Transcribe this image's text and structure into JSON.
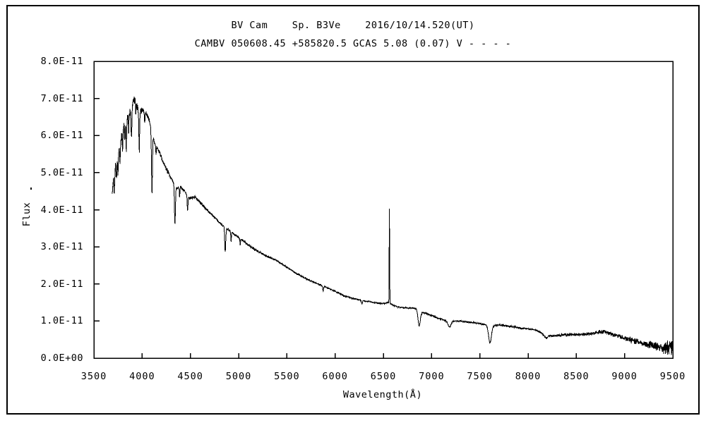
{
  "page": {
    "background": "#ffffff",
    "border_color": "#000000"
  },
  "chart_data": {
    "type": "line",
    "title": "BV Cam    Sp. B3Ve    2016/10/14.520(UT)",
    "subtitle": "CAMBV 050608.45 +585820.5 GCAS 5.08 (0.07) V - - - -",
    "xlabel": "Wavelength(Å)",
    "ylabel": "Flux",
    "line_color": "#000000",
    "grid": false,
    "legend": "none",
    "xlim": [
      3500,
      9500
    ],
    "y_max_flux_1e11": 8,
    "x_ticks": {
      "values": [
        3500,
        4000,
        4500,
        5000,
        5500,
        6000,
        6500,
        7000,
        7500,
        8000,
        8500,
        9000,
        9500
      ],
      "labels": [
        "3500",
        "4000",
        "4500",
        "5000",
        "5500",
        "6000",
        "6500",
        "7000",
        "7500",
        "8000",
        "8500",
        "9000",
        "9500"
      ]
    },
    "y_ticks": {
      "values": [
        0,
        1,
        2,
        3,
        4,
        5,
        6,
        7,
        8
      ],
      "labels": [
        "0.0E+00",
        "1.0E-11",
        "2.0E-11",
        "3.0E-11",
        "4.0E-11",
        "5.0E-11",
        "6.0E-11",
        "7.0E-11",
        "8.0E-11"
      ]
    },
    "wavelength_range": [
      3688,
      9505
    ],
    "sample_step_angstrom": 1.85,
    "flux_units": "1e-11",
    "continuum_points": [
      [
        3688,
        4.45
      ],
      [
        3700,
        4.8
      ],
      [
        3720,
        5.1
      ],
      [
        3740,
        5.35
      ],
      [
        3760,
        5.6
      ],
      [
        3780,
        5.9
      ],
      [
        3800,
        6.2
      ],
      [
        3830,
        6.4
      ],
      [
        3860,
        6.55
      ],
      [
        3890,
        6.7
      ],
      [
        3910,
        6.95
      ],
      [
        3925,
        7.0
      ],
      [
        3945,
        6.8
      ],
      [
        3970,
        6.65
      ],
      [
        4000,
        6.7
      ],
      [
        4040,
        6.6
      ],
      [
        4070,
        6.45
      ],
      [
        4100,
        6.1
      ],
      [
        4130,
        5.8
      ],
      [
        4170,
        5.6
      ],
      [
        4210,
        5.35
      ],
      [
        4250,
        5.1
      ],
      [
        4300,
        4.85
      ],
      [
        4350,
        4.6
      ],
      [
        4400,
        4.6
      ],
      [
        4440,
        4.5
      ],
      [
        4490,
        4.3
      ],
      [
        4550,
        4.35
      ],
      [
        4600,
        4.2
      ],
      [
        4650,
        4.05
      ],
      [
        4700,
        3.93
      ],
      [
        4750,
        3.8
      ],
      [
        4800,
        3.65
      ],
      [
        4860,
        3.52
      ],
      [
        4900,
        3.45
      ],
      [
        4950,
        3.35
      ],
      [
        5000,
        3.25
      ],
      [
        5100,
        3.05
      ],
      [
        5200,
        2.88
      ],
      [
        5300,
        2.74
      ],
      [
        5400,
        2.62
      ],
      [
        5500,
        2.45
      ],
      [
        5600,
        2.28
      ],
      [
        5700,
        2.14
      ],
      [
        5800,
        2.02
      ],
      [
        5900,
        1.92
      ],
      [
        6000,
        1.8
      ],
      [
        6100,
        1.67
      ],
      [
        6200,
        1.6
      ],
      [
        6300,
        1.54
      ],
      [
        6400,
        1.5
      ],
      [
        6500,
        1.47
      ],
      [
        6550,
        1.5
      ],
      [
        6600,
        1.43
      ],
      [
        6650,
        1.38
      ],
      [
        6700,
        1.36
      ],
      [
        6800,
        1.35
      ],
      [
        6850,
        1.33
      ],
      [
        6900,
        1.24
      ],
      [
        6950,
        1.2
      ],
      [
        7000,
        1.15
      ],
      [
        7100,
        1.05
      ],
      [
        7160,
        1.0
      ],
      [
        7250,
        1.0
      ],
      [
        7350,
        0.98
      ],
      [
        7450,
        0.95
      ],
      [
        7550,
        0.91
      ],
      [
        7650,
        0.88
      ],
      [
        7700,
        0.89
      ],
      [
        7800,
        0.86
      ],
      [
        7900,
        0.82
      ],
      [
        8000,
        0.78
      ],
      [
        8080,
        0.76
      ],
      [
        8120,
        0.7
      ],
      [
        8160,
        0.63
      ],
      [
        8250,
        0.6
      ],
      [
        8350,
        0.62
      ],
      [
        8450,
        0.64
      ],
      [
        8550,
        0.64
      ],
      [
        8650,
        0.66
      ],
      [
        8750,
        0.7
      ],
      [
        8820,
        0.7
      ],
      [
        8900,
        0.62
      ],
      [
        9000,
        0.54
      ],
      [
        9100,
        0.46
      ],
      [
        9200,
        0.4
      ],
      [
        9300,
        0.33
      ],
      [
        9400,
        0.28
      ],
      [
        9505,
        0.28
      ]
    ],
    "absorption_lines": [
      [
        3712,
        4,
        0.5
      ],
      [
        3734,
        3,
        0.4
      ],
      [
        3750,
        3,
        0.55
      ],
      [
        3771,
        3,
        0.5
      ],
      [
        3798,
        3.5,
        0.55
      ],
      [
        3820,
        3,
        0.45
      ],
      [
        3835,
        4,
        0.8
      ],
      [
        3860,
        3,
        0.45
      ],
      [
        3889,
        4,
        0.7
      ],
      [
        3934,
        3,
        0.4
      ],
      [
        3970,
        4,
        1.05
      ],
      [
        4026,
        3,
        0.3
      ],
      [
        4102,
        5,
        1.6
      ],
      [
        4144,
        3,
        0.25
      ],
      [
        4340,
        5,
        1.05
      ],
      [
        4388,
        3,
        0.25
      ],
      [
        4471,
        4,
        0.4
      ],
      [
        4861,
        5,
        0.65
      ],
      [
        4922,
        3,
        0.25
      ],
      [
        5016,
        3,
        0.15
      ],
      [
        5876,
        4,
        0.15
      ],
      [
        6278,
        6,
        0.08
      ],
      [
        6871,
        12,
        0.42
      ],
      [
        7186,
        16,
        0.16
      ],
      [
        7605,
        15,
        0.48
      ],
      [
        8190,
        15,
        0.08
      ]
    ],
    "emission_lines": [
      [
        6563,
        2.2,
        2.55
      ]
    ],
    "noise_bands": [
      [
        3688,
        3760,
        0.16
      ],
      [
        3760,
        4000,
        0.13
      ],
      [
        4000,
        4300,
        0.07
      ],
      [
        4300,
        4700,
        0.05
      ],
      [
        4700,
        5400,
        0.035
      ],
      [
        5400,
        6300,
        0.025
      ],
      [
        6300,
        6800,
        0.02
      ],
      [
        6800,
        7500,
        0.025
      ],
      [
        7500,
        8300,
        0.03
      ],
      [
        8300,
        8700,
        0.05
      ],
      [
        8700,
        9000,
        0.07
      ],
      [
        9000,
        9250,
        0.1
      ],
      [
        9250,
        9400,
        0.14
      ],
      [
        9400,
        9505,
        0.25
      ]
    ]
  }
}
